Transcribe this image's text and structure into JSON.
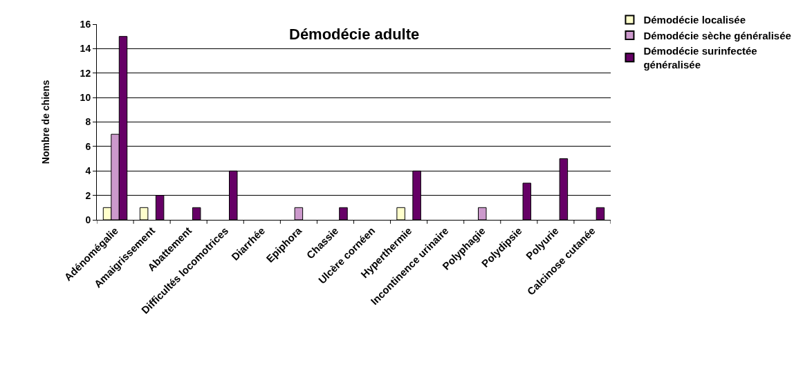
{
  "chart_data": {
    "type": "bar",
    "title": "Démodécie adulte",
    "ylabel": "Nombre de chiens",
    "categories": [
      "Adénomégalie",
      "Amaigrissement",
      "Abattement",
      "Difficultés locomotrices",
      "Diarrhée",
      "Epiphora",
      "Chassie",
      "Ulcère cornéen",
      "Hyperthermie",
      "Incontinence urinaire",
      "Polyphagie",
      "Polydipsie",
      "Polyurie",
      "Calcinose cutanée"
    ],
    "series": [
      {
        "name": "Démodécie localisée",
        "color": "#ffffcc",
        "values": [
          1,
          1,
          0,
          0,
          0,
          0,
          0,
          0,
          1,
          0,
          0,
          0,
          0,
          0
        ]
      },
      {
        "name": "Démodécie sèche généralisée",
        "color": "#cc99cc",
        "values": [
          7,
          0,
          0,
          0,
          0,
          1,
          0,
          0,
          0,
          0,
          1,
          0,
          0,
          0
        ]
      },
      {
        "name": "Démodécie surinfectée généralisée",
        "color": "#660066",
        "values": [
          15,
          2,
          1,
          4,
          0,
          0,
          1,
          0,
          4,
          0,
          0,
          3,
          5,
          1
        ]
      }
    ],
    "ylim": [
      0,
      16
    ],
    "yticks": [
      0,
      2,
      4,
      6,
      8,
      10,
      12,
      14,
      16
    ],
    "grid": "y",
    "legend": "top right"
  }
}
